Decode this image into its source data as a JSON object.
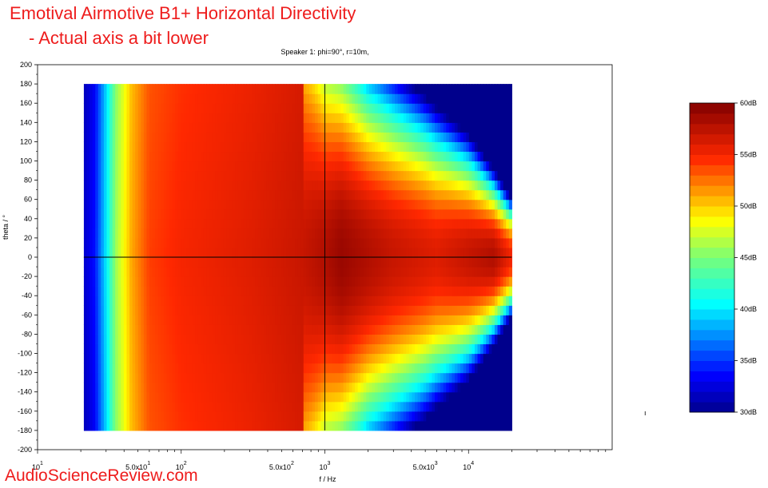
{
  "title_line1": "Emotival Airmotive B1+ Horizontal Directivity",
  "title_line2": "- Actual axis a bit lower",
  "watermark": "AudioScienceReview.com",
  "stray_mark": "ı",
  "chart_data": {
    "type": "heatmap",
    "title": "Speaker 1: phi=90°, r=10m,",
    "xlabel": "f / Hz",
    "ylabel": "theta / °",
    "x_scale": "log",
    "xlim": [
      10,
      100000
    ],
    "x_data_range": [
      21,
      20000
    ],
    "x_major_ticks": [
      "10^1",
      "10^2",
      "10^3",
      "10^4"
    ],
    "x_minor_labels": [
      "5.0x10^1",
      "5.0x10^2",
      "5.0x10^3"
    ],
    "ylim": [
      -200,
      200
    ],
    "y_data_range": [
      -180,
      180
    ],
    "y_ticks": [
      200,
      180,
      160,
      140,
      120,
      100,
      80,
      60,
      40,
      20,
      0,
      -20,
      -40,
      -60,
      -80,
      -100,
      -120,
      -140,
      -160,
      -180,
      -200
    ],
    "crosshair": {
      "x": 1000,
      "y": 0
    },
    "colorbar": {
      "min_db": 30,
      "max_db": 60,
      "step_db": 1,
      "labels": [
        "60dB",
        "55dB",
        "50dB",
        "45dB",
        "40dB",
        "35dB",
        "30dB"
      ],
      "label_values": [
        60,
        55,
        50,
        45,
        40,
        35,
        30
      ]
    },
    "level_profile_on_axis": [
      {
        "f": 21,
        "db": 32
      },
      {
        "f": 25,
        "db": 34
      },
      {
        "f": 30,
        "db": 40
      },
      {
        "f": 35,
        "db": 46
      },
      {
        "f": 45,
        "db": 51
      },
      {
        "f": 60,
        "db": 54
      },
      {
        "f": 100,
        "db": 55
      },
      {
        "f": 300,
        "db": 56
      },
      {
        "f": 700,
        "db": 57
      },
      {
        "f": 1000,
        "db": 58
      },
      {
        "f": 1300,
        "db": 59
      },
      {
        "f": 3000,
        "db": 57
      },
      {
        "f": 6000,
        "db": 56
      },
      {
        "f": 15000,
        "db": 58
      },
      {
        "f": 20000,
        "db": 55
      }
    ],
    "beamwidth_6db_deg": [
      {
        "f": 21,
        "deg": 180
      },
      {
        "f": 700,
        "deg": 180
      },
      {
        "f": 1000,
        "deg": 130
      },
      {
        "f": 2000,
        "deg": 100
      },
      {
        "f": 5000,
        "deg": 80
      },
      {
        "f": 10000,
        "deg": 60
      },
      {
        "f": 20000,
        "deg": 30
      }
    ]
  }
}
